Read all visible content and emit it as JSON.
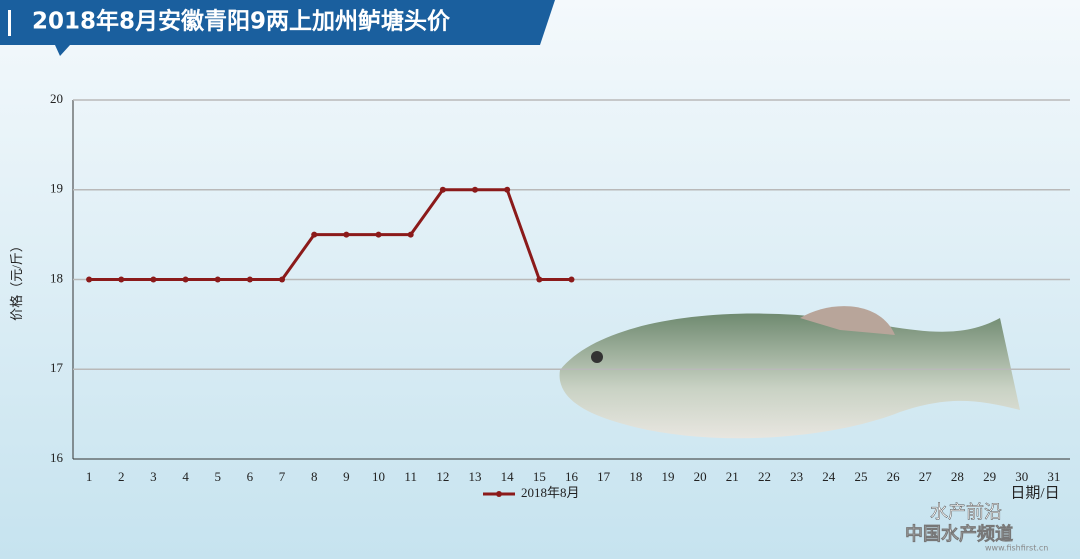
{
  "chart_data": {
    "type": "line",
    "title": "2018年8月安徽青阳9两上加州鲈塘头价",
    "y_label": "价格（元/斤）",
    "x_label": "日期/日",
    "categories": [
      1,
      2,
      3,
      4,
      5,
      6,
      7,
      8,
      9,
      10,
      11,
      12,
      13,
      14,
      15,
      16,
      17,
      18,
      19,
      20,
      21,
      22,
      23,
      24,
      25,
      26,
      27,
      28,
      29,
      30,
      31
    ],
    "series": [
      {
        "name": "2018年8月",
        "color": "#8b1a1a",
        "values": [
          18,
          18,
          18,
          18,
          18,
          18,
          18,
          18.5,
          18.5,
          18.5,
          18.5,
          19,
          19,
          19,
          18,
          18,
          null,
          null,
          null,
          null,
          null,
          null,
          null,
          null,
          null,
          null,
          null,
          null,
          null,
          null,
          null
        ]
      }
    ],
    "ylim": [
      16,
      20
    ],
    "yticks": [
      16,
      17,
      18,
      19,
      20
    ],
    "grid": true,
    "legend": "bottom",
    "watermark": {
      "name": "水产前沿",
      "channel": "中国水产频道",
      "site": "www.fishfirst.cn"
    }
  }
}
